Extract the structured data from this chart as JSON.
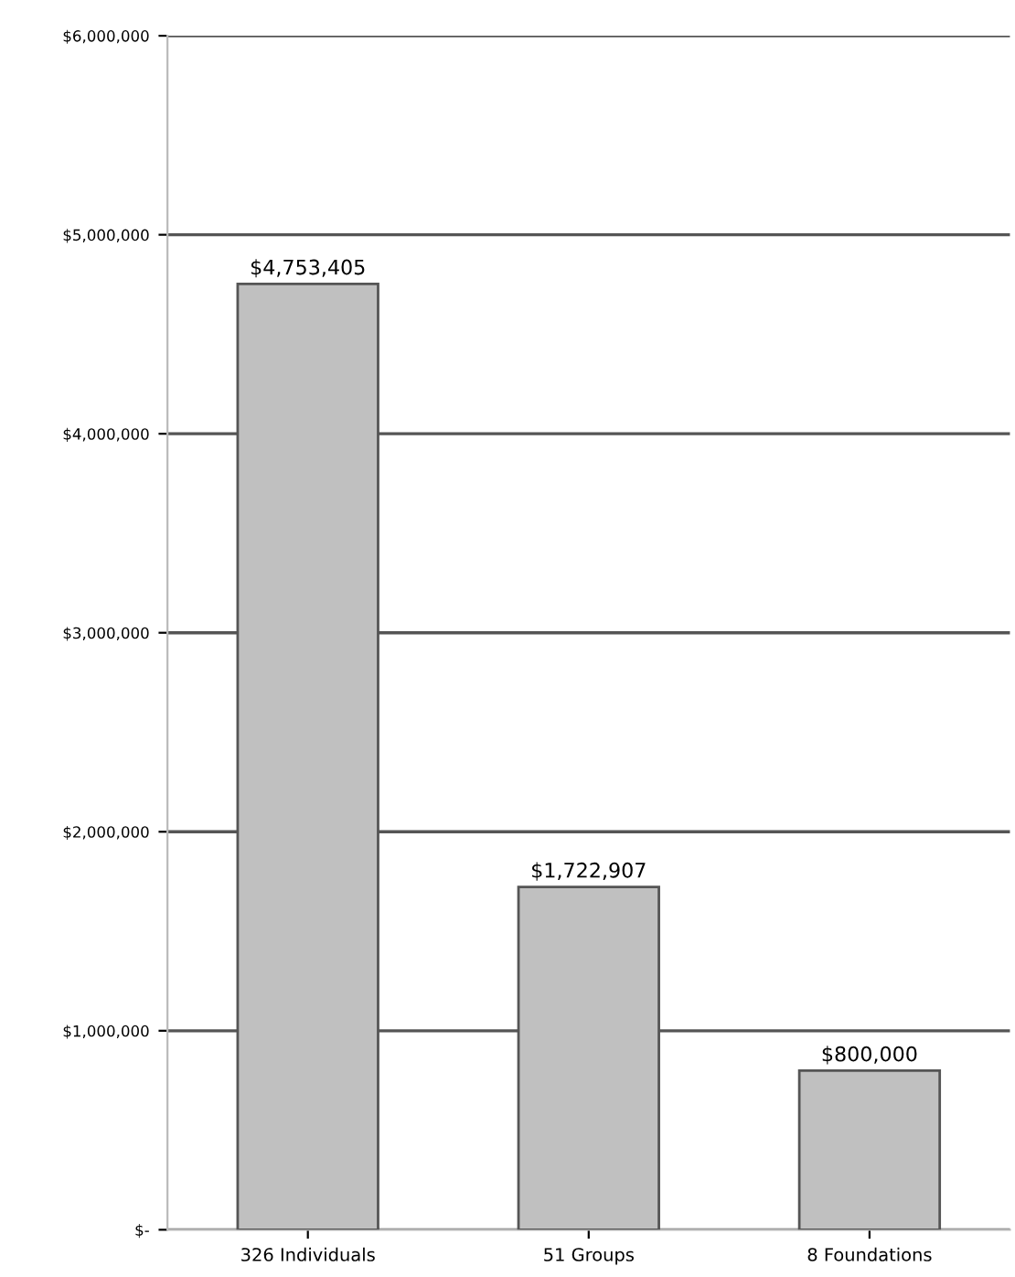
{
  "chart_data": {
    "type": "bar",
    "categories": [
      "326 Individuals",
      "51 Groups",
      "8 Foundations"
    ],
    "values": [
      4753405,
      1722907,
      800000
    ],
    "value_labels": [
      "$4,753,405",
      "$1,722,907",
      "$800,000"
    ],
    "color": "#c0c0c0",
    "ylim": [
      0,
      6000000
    ],
    "yticks": [
      {
        "value": 0,
        "label": "$-"
      },
      {
        "value": 1000000,
        "label": "$1,000,000"
      },
      {
        "value": 2000000,
        "label": "$2,000,000"
      },
      {
        "value": 3000000,
        "label": "$3,000,000"
      },
      {
        "value": 4000000,
        "label": "$4,000,000"
      },
      {
        "value": 5000000,
        "label": "$5,000,000"
      },
      {
        "value": 6000000,
        "label": "$6,000,000"
      }
    ],
    "grid": "y",
    "legend": false
  }
}
